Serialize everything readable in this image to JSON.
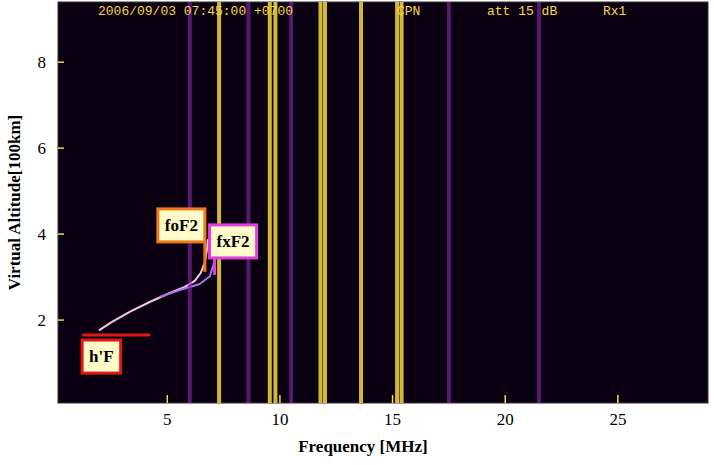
{
  "chart_data": {
    "type": "line",
    "header": [
      "2006/09/03 07:45:00 +0700",
      "CPN",
      "att 15 dB",
      "Rx1"
    ],
    "x_label": "Frequency [MHz]",
    "y_label": "Virtual Altitude[100km]",
    "xlim": [
      0.15,
      29
    ],
    "ylim": [
      0.07,
      9.4
    ],
    "xticks": [
      5,
      10,
      15,
      20,
      25
    ],
    "yticks": [
      2,
      4,
      6,
      8
    ],
    "grid": false,
    "series": [
      {
        "type": "line",
        "color": "#f4c8e8",
        "x": [
          2.0,
          2.53,
          3.33,
          4.22,
          5.11,
          5.78,
          6.22,
          6.49,
          6.67,
          6.76,
          6.8
        ],
        "values": [
          1.77,
          1.95,
          2.19,
          2.42,
          2.63,
          2.77,
          2.91,
          3.1,
          3.35,
          3.63,
          3.86
        ]
      },
      {
        "type": "line",
        "color": "#b070e8",
        "x": [
          4.67,
          5.56,
          6.44,
          6.89,
          7.06,
          7.15
        ],
        "values": [
          2.54,
          2.7,
          2.84,
          3.02,
          3.3,
          3.58
        ]
      },
      {
        "type": "vline",
        "color": "#f5d840",
        "x": [
          7.3,
          9.55,
          9.8,
          11.8,
          12.0,
          13.6,
          15.2,
          15.4
        ]
      },
      {
        "type": "vline",
        "color": "#8a2cb0",
        "x": [
          6.0,
          8.6,
          10.5,
          17.5,
          21.5
        ]
      }
    ],
    "annotations": [
      {
        "text": "foF2",
        "x": 6.67,
        "y": 3.12,
        "color": "#f07818"
      },
      {
        "text": "fxF2",
        "x": 7.1,
        "y": 3.05,
        "color": "#e040e0"
      },
      {
        "text": "h'F",
        "x": 1.22,
        "y": 1.65,
        "color": "#e01818"
      }
    ]
  }
}
